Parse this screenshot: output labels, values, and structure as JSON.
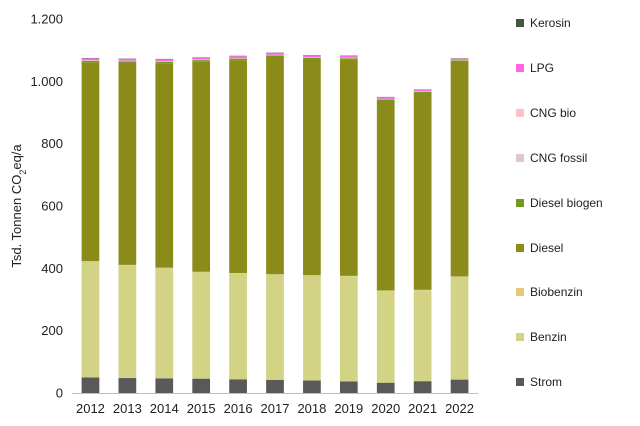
{
  "chart_data": {
    "type": "bar",
    "stacked": true,
    "title": "",
    "xlabel": "",
    "ylabel_parts": [
      "Tsd. Tonnen CO",
      "2",
      "eq/a"
    ],
    "ylim": [
      0,
      1200
    ],
    "yticks": [
      0,
      200,
      400,
      600,
      800,
      1000,
      1200
    ],
    "ytick_labels": [
      "0",
      "200",
      "400",
      "600",
      "800",
      "1.000",
      "1.200"
    ],
    "categories": [
      "2012",
      "2013",
      "2014",
      "2015",
      "2016",
      "2017",
      "2018",
      "2019",
      "2020",
      "2021",
      "2022"
    ],
    "series": [
      {
        "name": "Strom",
        "color": "#595959",
        "values": [
          50,
          48,
          47,
          46,
          44,
          42,
          40,
          37,
          33,
          38,
          43
        ]
      },
      {
        "name": "Benzin",
        "color": "#d2d384",
        "values": [
          372,
          362,
          354,
          342,
          340,
          338,
          337,
          338,
          295,
          292,
          330
        ]
      },
      {
        "name": "Biobenzin",
        "color": "#e6c97a",
        "values": [
          1,
          1,
          1,
          1,
          1,
          1,
          1,
          1,
          1,
          1,
          1
        ]
      },
      {
        "name": "Diesel",
        "color": "#8b8b1a",
        "values": [
          638,
          648,
          656,
          674,
          683,
          697,
          692,
          693,
          608,
          630,
          688
        ]
      },
      {
        "name": "Diesel biogen",
        "color": "#6f9a1f",
        "values": [
          5,
          5,
          5,
          5,
          5,
          5,
          5,
          5,
          5,
          5,
          5
        ]
      },
      {
        "name": "CNG fossil",
        "color": "#e2c6c9",
        "values": [
          1,
          1,
          1,
          1,
          1,
          1,
          1,
          1,
          1,
          1,
          1
        ]
      },
      {
        "name": "CNG bio",
        "color": "#ffc0cb",
        "values": [
          1,
          1,
          1,
          1,
          1,
          1,
          1,
          1,
          1,
          1,
          1
        ]
      },
      {
        "name": "LPG",
        "color": "#ff66e0",
        "values": [
          6,
          6,
          6,
          6,
          6,
          6,
          6,
          6,
          5,
          5,
          4
        ]
      },
      {
        "name": "Kerosin",
        "color": "#3f5a3f",
        "values": [
          1,
          1,
          1,
          1,
          1,
          1,
          1,
          1,
          1,
          1,
          1
        ]
      }
    ],
    "legend": [
      "Kerosin",
      "LPG",
      "CNG bio",
      "CNG fossil",
      "Diesel biogen",
      "Diesel",
      "Biobenzin",
      "Benzin",
      "Strom"
    ],
    "legend_position": "right",
    "grid": false
  }
}
